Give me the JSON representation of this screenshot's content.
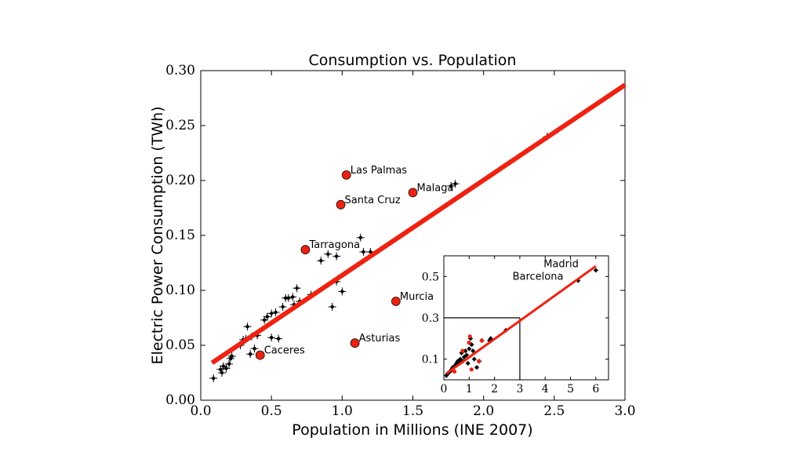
{
  "chart_data": [
    {
      "type": "scatter",
      "title": "Consumption vs. Population",
      "xlabel": "Population in Millions (INE 2007)",
      "ylabel": "Electric Power Consumption (TWh)",
      "xlim": [
        0.0,
        3.0
      ],
      "ylim": [
        0.0,
        0.3
      ],
      "xticks": [
        "0.0",
        "0.5",
        "1.0",
        "1.5",
        "2.0",
        "2.5",
        "3.0"
      ],
      "yticks": [
        "0.00",
        "0.05",
        "0.10",
        "0.15",
        "0.20",
        "0.25",
        "0.30"
      ],
      "grid": false,
      "fit_line": {
        "x": [
          0.08,
          3.0
        ],
        "y": [
          0.034,
          0.287
        ],
        "color": "#ee2211"
      },
      "points": [
        {
          "x": 0.09,
          "y": 0.02
        },
        {
          "x": 0.14,
          "y": 0.028
        },
        {
          "x": 0.15,
          "y": 0.025
        },
        {
          "x": 0.16,
          "y": 0.031
        },
        {
          "x": 0.18,
          "y": 0.029
        },
        {
          "x": 0.2,
          "y": 0.033
        },
        {
          "x": 0.21,
          "y": 0.038
        },
        {
          "x": 0.22,
          "y": 0.04
        },
        {
          "x": 0.28,
          "y": 0.05
        },
        {
          "x": 0.3,
          "y": 0.055
        },
        {
          "x": 0.32,
          "y": 0.056
        },
        {
          "x": 0.33,
          "y": 0.067
        },
        {
          "x": 0.35,
          "y": 0.042
        },
        {
          "x": 0.36,
          "y": 0.058
        },
        {
          "x": 0.38,
          "y": 0.047
        },
        {
          "x": 0.4,
          "y": 0.059
        },
        {
          "x": 0.45,
          "y": 0.073
        },
        {
          "x": 0.47,
          "y": 0.076
        },
        {
          "x": 0.5,
          "y": 0.057
        },
        {
          "x": 0.5,
          "y": 0.079
        },
        {
          "x": 0.53,
          "y": 0.08
        },
        {
          "x": 0.55,
          "y": 0.056
        },
        {
          "x": 0.58,
          "y": 0.085
        },
        {
          "x": 0.6,
          "y": 0.093
        },
        {
          "x": 0.62,
          "y": 0.093
        },
        {
          "x": 0.65,
          "y": 0.094
        },
        {
          "x": 0.66,
          "y": 0.087
        },
        {
          "x": 0.68,
          "y": 0.102
        },
        {
          "x": 0.7,
          "y": 0.09
        },
        {
          "x": 0.78,
          "y": 0.096
        },
        {
          "x": 0.85,
          "y": 0.127
        },
        {
          "x": 0.9,
          "y": 0.133
        },
        {
          "x": 0.93,
          "y": 0.085
        },
        {
          "x": 0.96,
          "y": 0.108
        },
        {
          "x": 0.96,
          "y": 0.131
        },
        {
          "x": 1.0,
          "y": 0.099
        },
        {
          "x": 1.13,
          "y": 0.148
        },
        {
          "x": 1.15,
          "y": 0.135
        },
        {
          "x": 1.2,
          "y": 0.135
        },
        {
          "x": 1.77,
          "y": 0.195
        },
        {
          "x": 1.8,
          "y": 0.197
        },
        {
          "x": 2.45,
          "y": 0.24
        }
      ],
      "highlighted": [
        {
          "label": "Las Palmas",
          "x": 1.03,
          "y": 0.205
        },
        {
          "label": "Malaga",
          "x": 1.5,
          "y": 0.189
        },
        {
          "label": "Santa Cruz",
          "x": 0.99,
          "y": 0.178
        },
        {
          "label": "Tarragona",
          "x": 0.74,
          "y": 0.137
        },
        {
          "label": "Murcia",
          "x": 1.38,
          "y": 0.09
        },
        {
          "label": "Asturias",
          "x": 1.09,
          "y": 0.052
        },
        {
          "label": "Caceres",
          "x": 0.42,
          "y": 0.041
        }
      ],
      "highlight_color": "#ee2211"
    },
    {
      "type": "scatter",
      "role": "inset",
      "xlim": [
        0,
        6.5
      ],
      "ylim": [
        0,
        0.6
      ],
      "xticks": [
        "0",
        "1",
        "2",
        "3",
        "4",
        "5",
        "6"
      ],
      "yticks": [
        "0.1",
        "0.3",
        "0.5"
      ],
      "zoom_box": {
        "x": [
          0,
          3.0
        ],
        "y": [
          0,
          0.3
        ]
      },
      "fit_line": {
        "x": [
          0.1,
          6.0
        ],
        "y": [
          0.03,
          0.55
        ]
      },
      "labels": [
        {
          "text": "Madrid",
          "x": 6.0,
          "y": 0.53
        },
        {
          "text": "Barcelona",
          "x": 5.4,
          "y": 0.48
        }
      ],
      "points": [
        {
          "x": 0.1,
          "y": 0.02
        },
        {
          "x": 0.15,
          "y": 0.03
        },
        {
          "x": 0.2,
          "y": 0.035
        },
        {
          "x": 0.25,
          "y": 0.04
        },
        {
          "x": 0.3,
          "y": 0.05
        },
        {
          "x": 0.35,
          "y": 0.06
        },
        {
          "x": 0.4,
          "y": 0.06
        },
        {
          "x": 0.45,
          "y": 0.07
        },
        {
          "x": 0.5,
          "y": 0.08
        },
        {
          "x": 0.55,
          "y": 0.09
        },
        {
          "x": 0.6,
          "y": 0.09
        },
        {
          "x": 0.65,
          "y": 0.1
        },
        {
          "x": 0.7,
          "y": 0.13
        },
        {
          "x": 0.75,
          "y": 0.09
        },
        {
          "x": 0.8,
          "y": 0.11
        },
        {
          "x": 0.85,
          "y": 0.14
        },
        {
          "x": 0.9,
          "y": 0.12
        },
        {
          "x": 0.95,
          "y": 0.08
        },
        {
          "x": 1.0,
          "y": 0.15
        },
        {
          "x": 1.05,
          "y": 0.2
        },
        {
          "x": 1.1,
          "y": 0.17
        },
        {
          "x": 1.15,
          "y": 0.14
        },
        {
          "x": 1.2,
          "y": 0.1
        },
        {
          "x": 1.3,
          "y": 0.06
        },
        {
          "x": 1.4,
          "y": 0.09
        },
        {
          "x": 1.5,
          "y": 0.19
        },
        {
          "x": 1.8,
          "y": 0.19
        },
        {
          "x": 1.85,
          "y": 0.2
        },
        {
          "x": 2.45,
          "y": 0.24
        },
        {
          "x": 5.3,
          "y": 0.48
        },
        {
          "x": 6.0,
          "y": 0.53
        }
      ],
      "highlighted": [
        {
          "x": 0.42,
          "y": 0.04
        },
        {
          "x": 0.74,
          "y": 0.14
        },
        {
          "x": 0.99,
          "y": 0.18
        },
        {
          "x": 1.03,
          "y": 0.21
        },
        {
          "x": 1.09,
          "y": 0.05
        },
        {
          "x": 1.38,
          "y": 0.09
        },
        {
          "x": 1.5,
          "y": 0.19
        }
      ]
    }
  ]
}
